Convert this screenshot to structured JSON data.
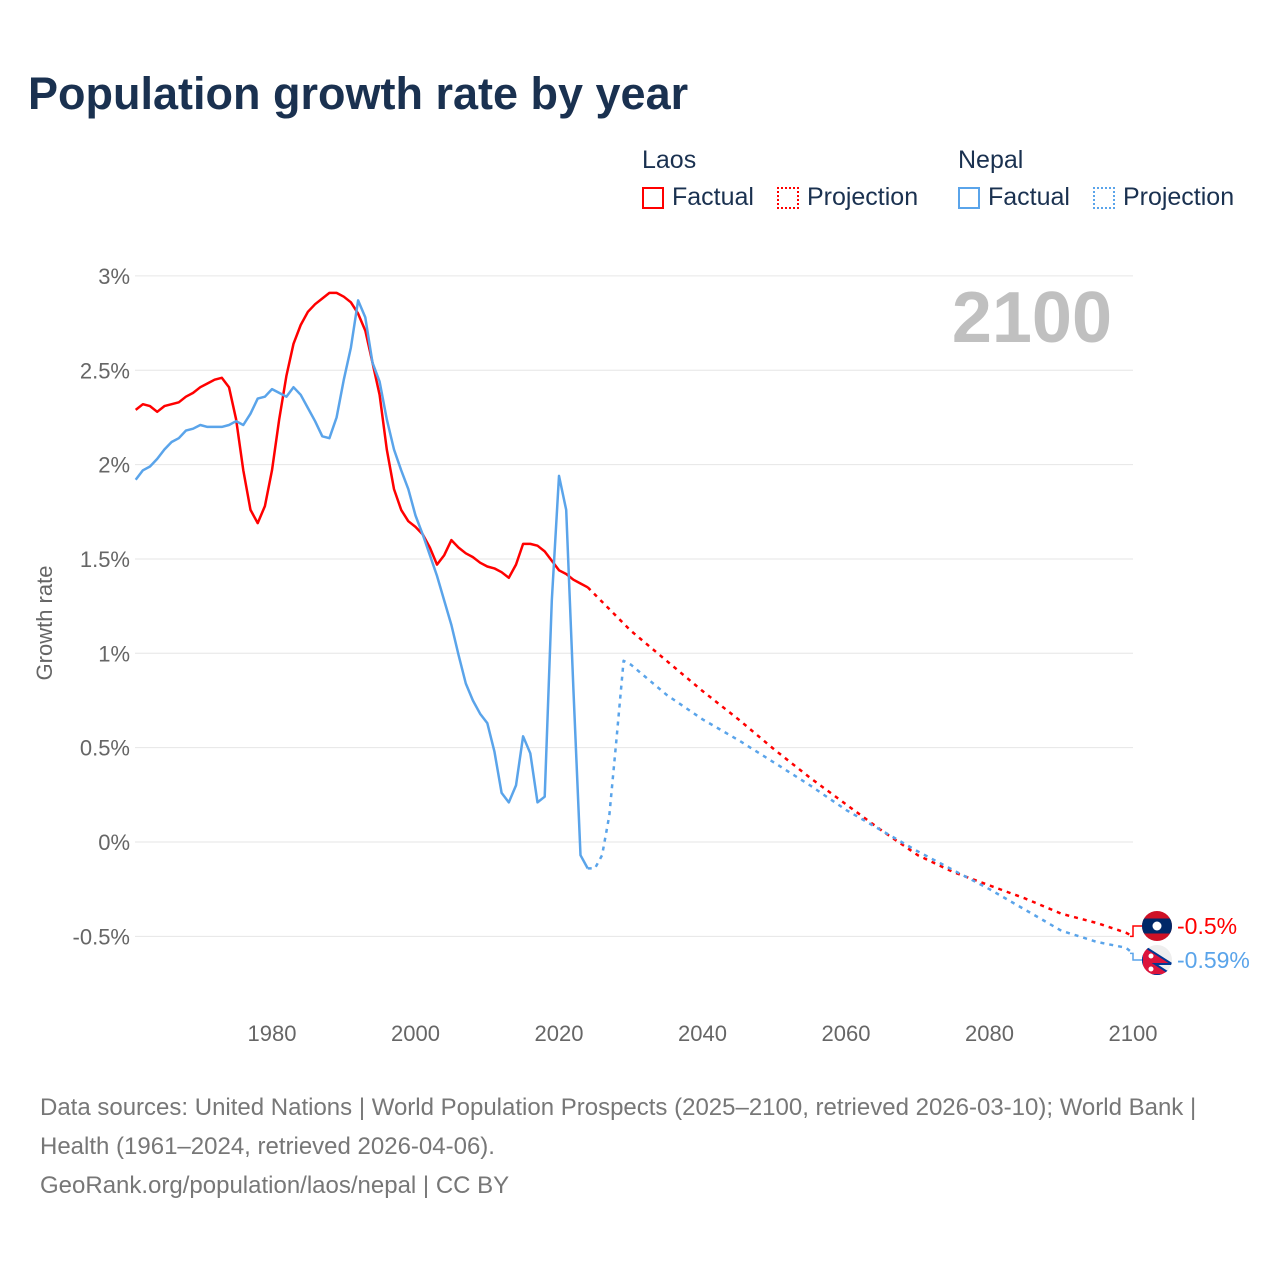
{
  "title": "Population growth rate by year",
  "legend": {
    "groups": [
      {
        "name": "Laos",
        "color": "#ff0000",
        "factual": "Factual",
        "projection": "Projection"
      },
      {
        "name": "Nepal",
        "color": "#5aa4ea",
        "factual": "Factual",
        "projection": "Projection"
      }
    ]
  },
  "year_label": "2100",
  "footer": {
    "sources": "Data sources: United Nations | World Population Prospects (2025–2100, retrieved 2026-03-10); World Bank | Health (1961–2024, retrieved 2026-04-06).",
    "credit": "GeoRank.org/population/laos/nepal | CC BY"
  },
  "chart_data": {
    "type": "line",
    "title": "Population growth rate by year",
    "xlabel": "",
    "ylabel": "Growth rate",
    "xlim": [
      1961,
      2100
    ],
    "ylim": [
      -0.75,
      3
    ],
    "x_ticks": [
      1980,
      2000,
      2020,
      2040,
      2060,
      2080,
      2100
    ],
    "y_ticks": [
      -0.5,
      0,
      0.5,
      1,
      1.5,
      2,
      2.5,
      3
    ],
    "y_tick_labels": [
      "-0.5%",
      "0%",
      "0.5%",
      "1%",
      "1.5%",
      "2%",
      "2.5%",
      "3%"
    ],
    "grid": true,
    "legend_position": "top-right",
    "series": [
      {
        "name": "Laos",
        "kind": "factual",
        "color": "#ff0000",
        "x": [
          1961,
          1962,
          1963,
          1964,
          1965,
          1966,
          1967,
          1968,
          1969,
          1970,
          1971,
          1972,
          1973,
          1974,
          1975,
          1976,
          1977,
          1978,
          1979,
          1980,
          1981,
          1982,
          1983,
          1984,
          1985,
          1986,
          1987,
          1988,
          1989,
          1990,
          1991,
          1992,
          1993,
          1994,
          1995,
          1996,
          1997,
          1998,
          1999,
          2000,
          2001,
          2002,
          2003,
          2004,
          2005,
          2006,
          2007,
          2008,
          2009,
          2010,
          2011,
          2012,
          2013,
          2014,
          2015,
          2016,
          2017,
          2018,
          2019,
          2020,
          2021,
          2022,
          2023,
          2024
        ],
        "y": [
          2.29,
          2.32,
          2.31,
          2.28,
          2.31,
          2.32,
          2.33,
          2.36,
          2.38,
          2.41,
          2.43,
          2.45,
          2.46,
          2.41,
          2.24,
          1.97,
          1.76,
          1.69,
          1.78,
          1.97,
          2.24,
          2.47,
          2.64,
          2.74,
          2.81,
          2.85,
          2.88,
          2.91,
          2.91,
          2.89,
          2.86,
          2.8,
          2.71,
          2.54,
          2.37,
          2.08,
          1.87,
          1.76,
          1.7,
          1.67,
          1.63,
          1.56,
          1.47,
          1.52,
          1.6,
          1.56,
          1.53,
          1.51,
          1.48,
          1.46,
          1.45,
          1.43,
          1.4,
          1.47,
          1.58,
          1.58,
          1.57,
          1.54,
          1.49,
          1.44,
          1.42,
          1.39,
          1.37,
          1.35
        ]
      },
      {
        "name": "Laos",
        "kind": "projection",
        "color": "#ff0000",
        "x": [
          2024,
          2030,
          2035,
          2040,
          2045,
          2050,
          2055,
          2060,
          2065,
          2070,
          2075,
          2080,
          2085,
          2090,
          2095,
          2099,
          2100
        ],
        "y": [
          1.35,
          1.12,
          0.96,
          0.8,
          0.65,
          0.49,
          0.34,
          0.2,
          0.06,
          -0.07,
          -0.16,
          -0.23,
          -0.3,
          -0.38,
          -0.43,
          -0.48,
          -0.5
        ]
      },
      {
        "name": "Nepal",
        "kind": "factual",
        "color": "#5aa4ea",
        "x": [
          1961,
          1962,
          1963,
          1964,
          1965,
          1966,
          1967,
          1968,
          1969,
          1970,
          1971,
          1972,
          1973,
          1974,
          1975,
          1976,
          1977,
          1978,
          1979,
          1980,
          1981,
          1982,
          1983,
          1984,
          1985,
          1986,
          1987,
          1988,
          1989,
          1990,
          1991,
          1992,
          1993,
          1994,
          1995,
          1996,
          1997,
          1998,
          1999,
          2000,
          2001,
          2002,
          2003,
          2004,
          2005,
          2006,
          2007,
          2008,
          2009,
          2010,
          2011,
          2012,
          2013,
          2014,
          2015,
          2016,
          2017,
          2018,
          2019,
          2020,
          2021,
          2022,
          2023,
          2024
        ],
        "y": [
          1.92,
          1.97,
          1.99,
          2.03,
          2.08,
          2.12,
          2.14,
          2.18,
          2.19,
          2.21,
          2.2,
          2.2,
          2.2,
          2.21,
          2.23,
          2.21,
          2.27,
          2.35,
          2.36,
          2.4,
          2.38,
          2.36,
          2.41,
          2.37,
          2.3,
          2.23,
          2.15,
          2.14,
          2.25,
          2.45,
          2.62,
          2.87,
          2.78,
          2.54,
          2.44,
          2.24,
          2.08,
          1.97,
          1.87,
          1.73,
          1.63,
          1.52,
          1.41,
          1.28,
          1.15,
          0.99,
          0.84,
          0.75,
          0.68,
          0.63,
          0.48,
          0.26,
          0.21,
          0.3,
          0.56,
          0.47,
          0.21,
          0.24,
          1.28,
          1.94,
          1.76,
          0.81,
          -0.07,
          -0.14
        ]
      },
      {
        "name": "Nepal",
        "kind": "projection",
        "color": "#5aa4ea",
        "x": [
          2024,
          2025,
          2026,
          2027,
          2028,
          2029,
          2030,
          2035,
          2040,
          2045,
          2050,
          2055,
          2060,
          2065,
          2070,
          2075,
          2080,
          2085,
          2090,
          2095,
          2099,
          2100
        ],
        "y": [
          -0.14,
          -0.14,
          -0.07,
          0.14,
          0.54,
          0.96,
          0.94,
          0.78,
          0.65,
          0.54,
          0.42,
          0.3,
          0.17,
          0.06,
          -0.05,
          -0.15,
          -0.25,
          -0.36,
          -0.47,
          -0.53,
          -0.56,
          -0.59
        ]
      }
    ],
    "end_labels": [
      {
        "name": "Laos",
        "value": -0.5,
        "label": "-0.5%",
        "color": "#ff0000",
        "flag": "laos-flag"
      },
      {
        "name": "Nepal",
        "value": -0.59,
        "label": "-0.59%",
        "color": "#5aa4ea",
        "flag": "nepal-flag"
      }
    ]
  }
}
